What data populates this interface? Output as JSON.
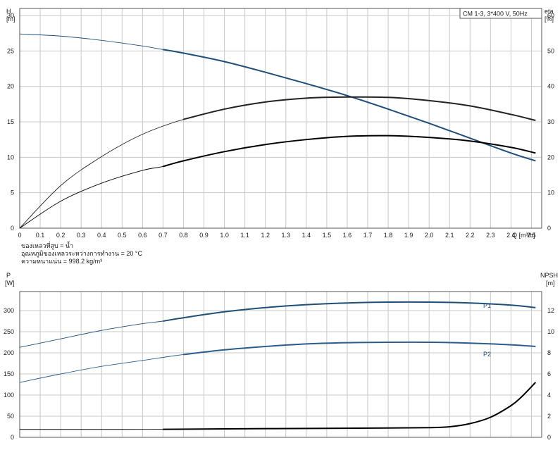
{
  "chart_data": [
    {
      "type": "line",
      "panel": "upper",
      "title": "CM 1-3, 3*400 V, 50Hz",
      "xlabel": "Q [m³/h]",
      "ylabel_left": {
        "line1": "H",
        "line2": "[m]"
      },
      "ylabel_right": {
        "line1": "eta",
        "line2": "[%]"
      },
      "xlim": [
        0,
        2.55
      ],
      "ylim_left": [
        0,
        31
      ],
      "ylim_right": [
        0,
        62
      ],
      "grid": true,
      "x_ticks": [
        "0",
        "0.1",
        "0.2",
        "0.3",
        "0.4",
        "0.5",
        "0.6",
        "0.7",
        "0.8",
        "0.9",
        "1.0",
        "1.1",
        "1.2",
        "1.3",
        "1.4",
        "1.5",
        "1.6",
        "1.7",
        "1.8",
        "1.9",
        "2.0",
        "2.1",
        "2.2",
        "2.3",
        "2.4",
        "2.5"
      ],
      "y_ticks_left": [
        "0",
        "5",
        "10",
        "15",
        "20",
        "25",
        "30"
      ],
      "y_ticks_right": [
        "0",
        "10",
        "20",
        "30",
        "40",
        "50",
        "60"
      ],
      "notes": [
        "ของเหลวที่สูบ = น้ำ",
        "อุณหภูมิของเหลวระหว่างการทำงาน = 20 °C",
        "ความหนาแน่น = 998.2 kg/m³"
      ],
      "series": [
        {
          "axis": "left",
          "color": "#1f4e79",
          "x": [
            0,
            0.2,
            0.4,
            0.6,
            0.7,
            0.8,
            1.0,
            1.2,
            1.4,
            1.6,
            1.8,
            2.0,
            2.2,
            2.4,
            2.52
          ],
          "y": [
            27.4,
            27.1,
            26.5,
            25.7,
            25.2,
            24.7,
            23.5,
            22.0,
            20.4,
            18.7,
            16.8,
            14.8,
            12.7,
            10.6,
            9.5
          ]
        },
        {
          "axis": "right",
          "color": "#222222",
          "x": [
            0,
            0.2,
            0.4,
            0.6,
            0.8,
            1.0,
            1.2,
            1.4,
            1.6,
            1.8,
            2.0,
            2.2,
            2.4,
            2.52
          ],
          "y": [
            0,
            12.0,
            20.2,
            26.5,
            30.7,
            33.6,
            35.6,
            36.7,
            37.0,
            36.9,
            36.0,
            34.5,
            32.1,
            30.4
          ]
        },
        {
          "axis": "right",
          "color": "#000000",
          "x": [
            0,
            0.2,
            0.4,
            0.6,
            0.7,
            0.8,
            1.0,
            1.2,
            1.4,
            1.6,
            1.8,
            2.0,
            2.2,
            2.4,
            2.52
          ],
          "y": [
            0,
            7.6,
            12.7,
            16.3,
            17.4,
            19.0,
            21.6,
            23.6,
            25.0,
            25.9,
            26.1,
            25.6,
            24.6,
            22.8,
            21.2
          ]
        }
      ]
    },
    {
      "type": "line",
      "panel": "lower",
      "xlim": [
        0,
        2.55
      ],
      "ylabel_left": {
        "line1": "P",
        "line2": "[W]"
      },
      "ylabel_right": {
        "line1": "NPSH",
        "line2": "[m]"
      },
      "ylim_left": [
        0,
        345
      ],
      "ylim_right": [
        0,
        13.8
      ],
      "grid": true,
      "y_ticks_left": [
        "0",
        "50",
        "100",
        "150",
        "200",
        "250",
        "300"
      ],
      "y_ticks_right": [
        "0",
        "2",
        "4",
        "6",
        "8",
        "10",
        "12"
      ],
      "series": [
        {
          "name": "P1",
          "axis": "left",
          "color": "#1f4e79",
          "x": [
            0,
            0.2,
            0.4,
            0.6,
            0.7,
            0.8,
            1.0,
            1.2,
            1.4,
            1.6,
            1.8,
            2.0,
            2.2,
            2.4,
            2.52
          ],
          "y": [
            213,
            233,
            253,
            269,
            275,
            283,
            297,
            307,
            314,
            318,
            320,
            320,
            318,
            313,
            307
          ]
        },
        {
          "name": "P2",
          "axis": "left",
          "color": "#2a5d8a",
          "x": [
            0,
            0.2,
            0.4,
            0.6,
            0.8,
            1.0,
            1.2,
            1.4,
            1.6,
            1.8,
            2.0,
            2.2,
            2.4,
            2.52
          ],
          "y": [
            130,
            150,
            168,
            182,
            196,
            207,
            215,
            221,
            224,
            225,
            225,
            223,
            219,
            215
          ]
        },
        {
          "axis": "right",
          "color": "#000000",
          "x": [
            0,
            0.5,
            0.7,
            1.0,
            1.5,
            1.8,
            2.0,
            2.1,
            2.2,
            2.3,
            2.4,
            2.45,
            2.52
          ],
          "y": [
            0.75,
            0.75,
            0.76,
            0.8,
            0.85,
            0.88,
            0.92,
            1.0,
            1.3,
            1.9,
            3.0,
            3.8,
            5.2
          ]
        }
      ]
    }
  ]
}
